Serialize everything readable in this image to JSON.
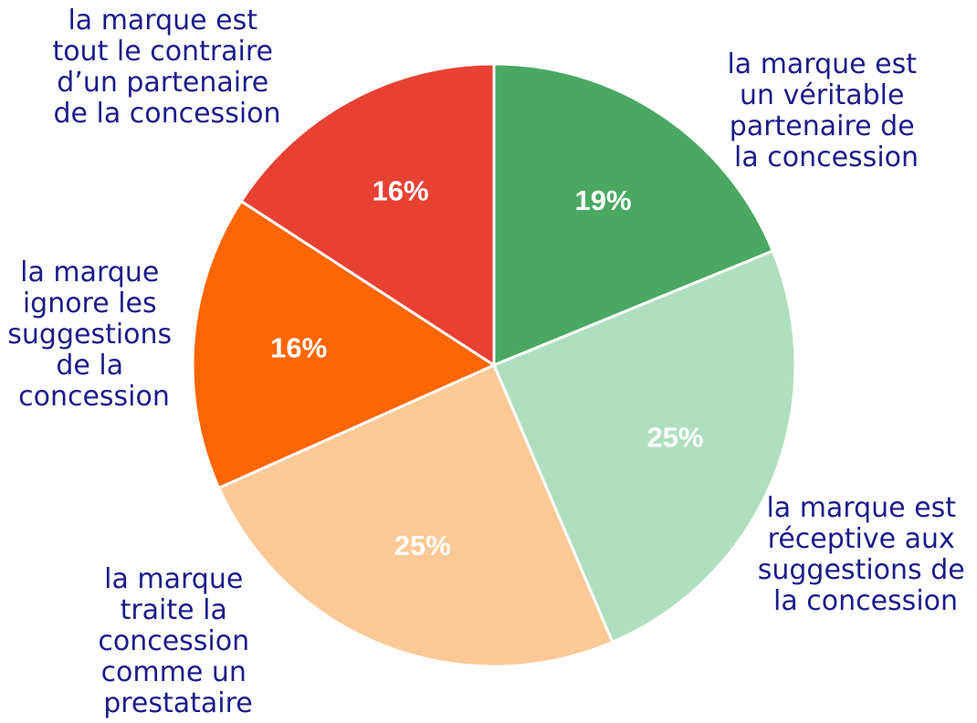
{
  "chart_data": {
    "type": "pie",
    "categories": [
      "la marque est un véritable partenaire de la concession",
      "la marque est réceptive aux suggestions de la concession",
      "la marque traite la concession comme un prestataire",
      "la marque ignore les suggestions de la concession",
      "la marque est tout le contraire d’un partenaire de la concession"
    ],
    "values": [
      19,
      25,
      25,
      16,
      16
    ],
    "value_labels": [
      "19%",
      "25%",
      "25%",
      "16%",
      "16%"
    ],
    "colors": [
      "#4aa862",
      "#b0dfbf",
      "#fdc997",
      "#fd6600",
      "#e84134"
    ]
  }
}
